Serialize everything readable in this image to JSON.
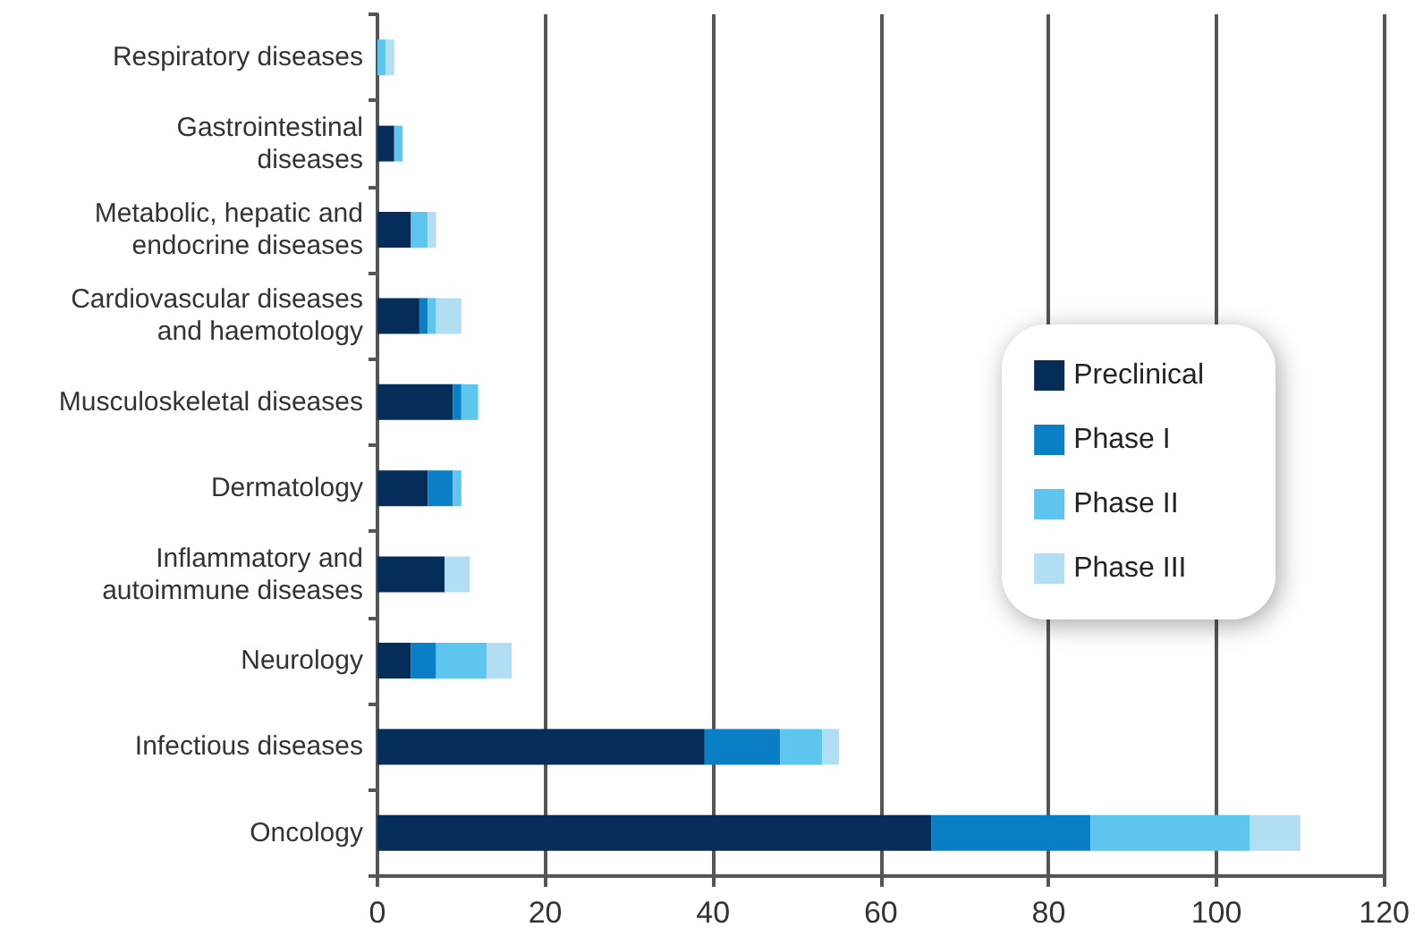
{
  "chart_data": {
    "type": "bar",
    "orientation": "horizontal",
    "stacked": true,
    "categories": [
      "Respiratory diseases",
      "Gastrointestinal\ndiseases",
      "Metabolic, hepatic and\nendocrine diseases",
      "Cardiovascular diseases\nand haemotology",
      "Musculoskeletal diseases",
      "Dermatology",
      "Inflammatory and\nautoimmune diseases",
      "Neurology",
      "Infectious diseases",
      "Oncology"
    ],
    "series": [
      {
        "name": "Preclinical",
        "color": "#062d5a",
        "values": [
          0,
          2,
          4,
          5,
          9,
          6,
          8,
          4,
          39,
          66
        ]
      },
      {
        "name": "Phase I",
        "color": "#0a7fc6",
        "values": [
          0,
          0,
          0,
          1,
          1,
          3,
          0,
          3,
          9,
          19
        ]
      },
      {
        "name": "Phase II",
        "color": "#5ec5ee",
        "values": [
          1,
          1,
          2,
          1,
          2,
          1,
          0,
          6,
          5,
          19
        ]
      },
      {
        "name": "Phase III",
        "color": "#b2def4",
        "values": [
          1,
          0,
          1,
          3,
          0,
          0,
          3,
          3,
          2,
          6
        ]
      }
    ],
    "xlim": [
      0,
      120
    ],
    "xticks": [
      0,
      20,
      40,
      60,
      80,
      100,
      120
    ],
    "grid": "x",
    "legend": "right"
  }
}
